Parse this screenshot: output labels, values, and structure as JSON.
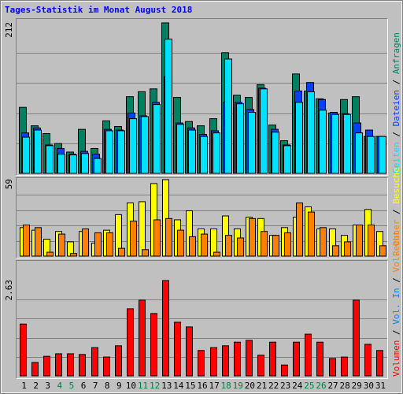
{
  "title": "Tages-Statistik im Monat August 2018",
  "legend_separator": " / ",
  "chart_data": [
    {
      "type": "bar",
      "ylim": [
        0,
        212
      ],
      "yticks": [
        212
      ],
      "grid_divisions": 5,
      "legend_reverse": true,
      "series": [
        {
          "name": "Anfragen",
          "color": "#008060",
          "values": [
            93,
            67,
            56,
            42,
            30,
            62,
            35,
            74,
            66,
            108,
            115,
            119,
            212,
            107,
            73,
            67,
            77,
            170,
            110,
            107,
            125,
            68,
            46,
            140,
            116,
            105,
            85,
            104,
            108,
            52,
            52
          ]
        },
        {
          "name": "Dateien",
          "color": "#0040ff",
          "values": [
            57,
            64,
            40,
            35,
            27,
            31,
            27,
            62,
            61,
            85,
            81,
            100,
            136,
            71,
            64,
            55,
            60,
            100,
            100,
            90,
            120,
            62,
            40,
            116,
            128,
            104,
            86,
            84,
            71,
            61,
            52
          ]
        },
        {
          "name": "Seiten",
          "color": "#00e0ff",
          "values": [
            51,
            61,
            39,
            27,
            26,
            28,
            21,
            60,
            60,
            77,
            80,
            97,
            189,
            69,
            61,
            52,
            57,
            161,
            98,
            86,
            119,
            58,
            39,
            100,
            115,
            89,
            83,
            83,
            57,
            52,
            52
          ]
        }
      ]
    },
    {
      "type": "bar",
      "ylim": [
        0,
        59
      ],
      "yticks": [
        59
      ],
      "grid_divisions": 5,
      "legend_reverse": true,
      "series": [
        {
          "name": "Besuche",
          "color": "#ffff00",
          "values": [
            22,
            20,
            13,
            19,
            11,
            19,
            10,
            20,
            32,
            41,
            42,
            56,
            59,
            28,
            35,
            21,
            21,
            31,
            21,
            30,
            29,
            16,
            22,
            30,
            38,
            21,
            21,
            16,
            24,
            36,
            19
          ]
        },
        {
          "name": "Rechner",
          "color": "#ff8000",
          "values": [
            24,
            22,
            3,
            17,
            2,
            21,
            18,
            18,
            6,
            27,
            5,
            28,
            29,
            20,
            15,
            17,
            3,
            16,
            14,
            29,
            19,
            16,
            18,
            41,
            34,
            22,
            8,
            11,
            24,
            24,
            8
          ]
        }
      ]
    },
    {
      "type": "bar",
      "ylim": [
        0,
        2.63
      ],
      "yticks": [
        2.63
      ],
      "grid_divisions": 5,
      "legend_reverse": false,
      "categories": [
        "1",
        "2",
        "3",
        "4",
        "5",
        "6",
        "7",
        "8",
        "9",
        "10",
        "11",
        "12",
        "13",
        "14",
        "15",
        "16",
        "17",
        "18",
        "19",
        "20",
        "21",
        "22",
        "23",
        "24",
        "25",
        "26",
        "27",
        "28",
        "29",
        "30",
        "31"
      ],
      "highlight": [
        "4",
        "5",
        "11",
        "12",
        "18",
        "19",
        "25",
        "26"
      ],
      "highlight_color": "#008040",
      "series": [
        {
          "name": "Volumen",
          "color": "#ff0000",
          "values": [
            1.43,
            0.37,
            0.54,
            0.61,
            0.61,
            0.59,
            0.78,
            0.52,
            0.83,
            1.85,
            2.09,
            1.72,
            2.63,
            1.48,
            1.35,
            0.7,
            0.78,
            0.83,
            0.93,
            0.98,
            0.57,
            0.93,
            0.3,
            0.93,
            1.15,
            0.93,
            0.48,
            0.52,
            2.09,
            0.87,
            0.7
          ]
        },
        {
          "name": "Vol. In",
          "color": "#0080ff",
          "values": [
            null,
            null,
            null,
            null,
            null,
            null,
            null,
            null,
            null,
            null,
            null,
            null,
            null,
            null,
            null,
            null,
            null,
            null,
            null,
            null,
            null,
            null,
            null,
            null,
            null,
            null,
            null,
            null,
            null,
            null,
            null
          ]
        },
        {
          "name": "Vol. Out",
          "color": "#ff8000",
          "values": [
            null,
            null,
            null,
            null,
            null,
            null,
            null,
            null,
            null,
            null,
            null,
            null,
            null,
            null,
            null,
            null,
            null,
            null,
            null,
            null,
            null,
            null,
            null,
            null,
            null,
            null,
            null,
            null,
            null,
            null,
            null
          ]
        }
      ]
    }
  ]
}
